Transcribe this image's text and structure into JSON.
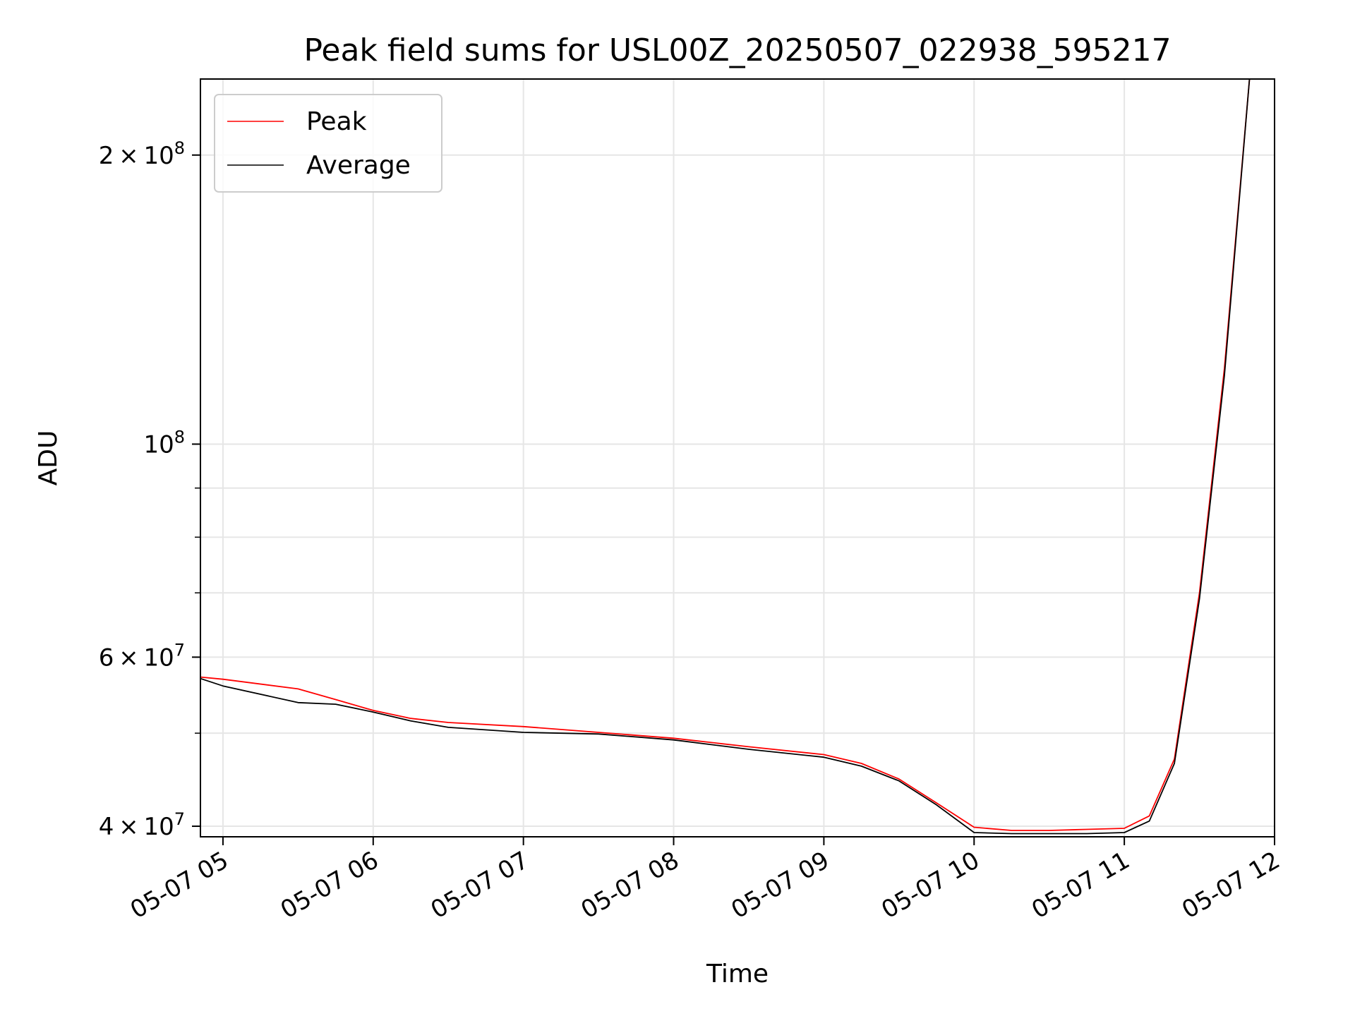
{
  "chart_data": {
    "type": "line",
    "title": "Peak field sums for USL00Z_20250507_022938_595217",
    "xlabel": "Time",
    "ylabel": "ADU",
    "x_unit": "hours",
    "xlim": [
      "05-07 04:51",
      "05-07 12:00"
    ],
    "ylim": [
      39000000,
      240000000
    ],
    "yscale": "log",
    "grid": true,
    "legend_position": "top-left",
    "x_ticks": [
      "05-07 05",
      "05-07 06",
      "05-07 07",
      "05-07 08",
      "05-07 09",
      "05-07 10",
      "05-07 11",
      "05-07 12"
    ],
    "y_ticks": [
      {
        "value": 40000000,
        "mantissa": "4",
        "exponent": "7"
      },
      {
        "value": 60000000,
        "mantissa": "6",
        "exponent": "7"
      },
      {
        "value": 100000000,
        "mantissa": "",
        "exponent": "8"
      },
      {
        "value": 200000000,
        "mantissa": "2",
        "exponent": "8"
      }
    ],
    "series": [
      {
        "name": "Peak",
        "color": "#ff0000",
        "points": [
          [
            "05-07 04:51",
            57200000
          ],
          [
            "05-07 05:00",
            56900000
          ],
          [
            "05-07 05:30",
            55600000
          ],
          [
            "05-07 05:45",
            54200000
          ],
          [
            "05-07 06:00",
            52800000
          ],
          [
            "05-07 06:15",
            51800000
          ],
          [
            "05-07 06:30",
            51300000
          ],
          [
            "05-07 07:00",
            50800000
          ],
          [
            "05-07 07:30",
            50100000
          ],
          [
            "05-07 08:00",
            49400000
          ],
          [
            "05-07 08:30",
            48400000
          ],
          [
            "05-07 09:00",
            47500000
          ],
          [
            "05-07 09:15",
            46500000
          ],
          [
            "05-07 09:30",
            44800000
          ],
          [
            "05-07 09:45",
            42300000
          ],
          [
            "05-07 10:00",
            39900000
          ],
          [
            "05-07 10:15",
            39600000
          ],
          [
            "05-07 10:30",
            39600000
          ],
          [
            "05-07 10:45",
            39700000
          ],
          [
            "05-07 11:00",
            39800000
          ],
          [
            "05-07 11:10",
            41000000
          ],
          [
            "05-07 11:20",
            47000000
          ],
          [
            "05-07 11:30",
            70000000
          ],
          [
            "05-07 11:40",
            120000000
          ],
          [
            "05-07 11:50",
            240000000
          ]
        ]
      },
      {
        "name": "Average",
        "color": "#000000",
        "points": [
          [
            "05-07 04:51",
            57000000
          ],
          [
            "05-07 05:00",
            56000000
          ],
          [
            "05-07 05:30",
            53800000
          ],
          [
            "05-07 05:45",
            53600000
          ],
          [
            "05-07 06:00",
            52600000
          ],
          [
            "05-07 06:15",
            51500000
          ],
          [
            "05-07 06:30",
            50700000
          ],
          [
            "05-07 07:00",
            50100000
          ],
          [
            "05-07 07:30",
            49900000
          ],
          [
            "05-07 08:00",
            49200000
          ],
          [
            "05-07 08:30",
            48100000
          ],
          [
            "05-07 09:00",
            47200000
          ],
          [
            "05-07 09:15",
            46200000
          ],
          [
            "05-07 09:30",
            44600000
          ],
          [
            "05-07 09:45",
            42100000
          ],
          [
            "05-07 10:00",
            39400000
          ],
          [
            "05-07 10:15",
            39300000
          ],
          [
            "05-07 10:30",
            39300000
          ],
          [
            "05-07 10:45",
            39300000
          ],
          [
            "05-07 11:00",
            39400000
          ],
          [
            "05-07 11:10",
            40500000
          ],
          [
            "05-07 11:20",
            46500000
          ],
          [
            "05-07 11:30",
            69000000
          ],
          [
            "05-07 11:40",
            118000000
          ],
          [
            "05-07 11:50",
            240000000
          ]
        ]
      }
    ]
  }
}
